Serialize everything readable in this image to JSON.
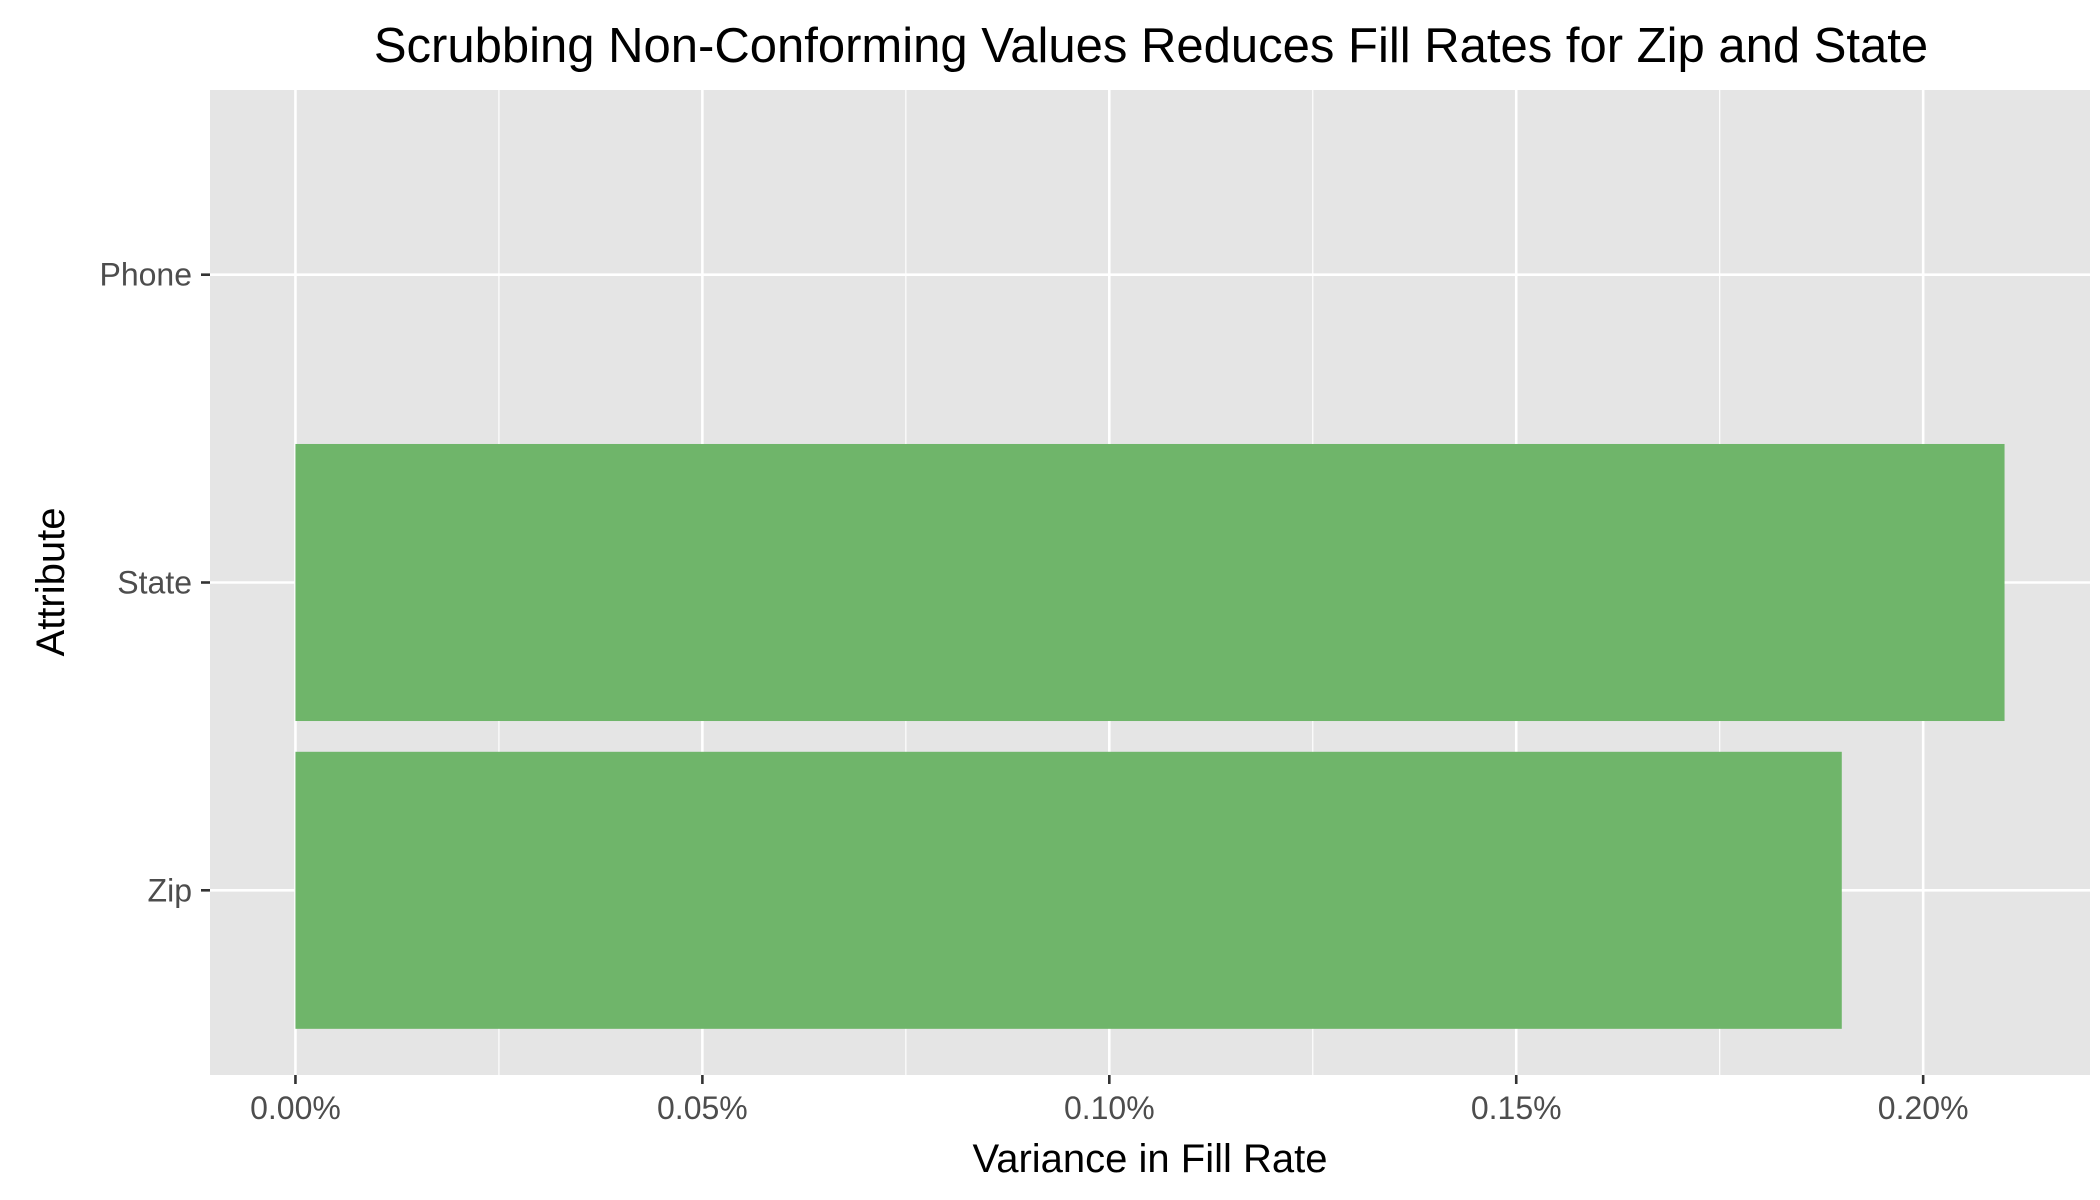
{
  "chart_data": {
    "type": "bar",
    "orientation": "horizontal",
    "title": "Scrubbing Non-Conforming Values Reduces Fill Rates for Zip and State",
    "xlabel": "Variance in Fill Rate",
    "ylabel": "Attribute",
    "categories": [
      "Phone",
      "State",
      "Zip"
    ],
    "values": [
      0.0,
      0.21,
      0.19
    ],
    "value_unit": "%",
    "xlim": [
      -0.0105,
      0.2205
    ],
    "x_ticks": [
      0.0,
      0.05,
      0.1,
      0.15,
      0.2
    ],
    "x_tick_labels": [
      "0.00%",
      "0.05%",
      "0.10%",
      "0.15%",
      "0.20%"
    ],
    "grid": true,
    "legend": "none",
    "colors": {
      "bar": "#6fb56a",
      "panel_background": "#e5e5e5",
      "grid": "#ffffff",
      "text": "#000000",
      "tick_text": "#4d4d4d",
      "tick_mark": "#333333"
    }
  }
}
